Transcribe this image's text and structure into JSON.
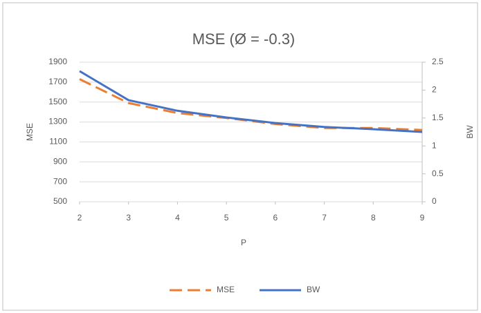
{
  "chart_data": {
    "type": "line",
    "title": "MSE (Ø = -0.3)",
    "x_label": "P",
    "y_label": "MSE",
    "y2_label": "BW",
    "x": [
      2,
      3,
      4,
      5,
      6,
      7,
      8,
      9
    ],
    "series": [
      {
        "name": "MSE",
        "color": "#ed7d31",
        "dashed": true,
        "values": [
          1730,
          1490,
          1390,
          1340,
          1280,
          1240,
          1240,
          1220
        ]
      },
      {
        "name": "BW",
        "color": "#4472c4",
        "axis": "y2",
        "values": [
          2.34,
          1.82,
          1.63,
          1.51,
          1.41,
          1.34,
          1.3,
          1.25
        ]
      }
    ],
    "xlim": [
      2,
      9
    ],
    "xticks": [
      2,
      3,
      4,
      5,
      6,
      7,
      8,
      9
    ],
    "ylim": [
      500,
      1900
    ],
    "yticks": [
      500,
      700,
      900,
      1100,
      1300,
      1500,
      1700,
      1900
    ],
    "y2lim": [
      0,
      2.5
    ],
    "y2ticks": [
      0,
      0.5,
      1,
      1.5,
      2,
      2.5
    ],
    "grid": true,
    "legend": "bottom"
  }
}
